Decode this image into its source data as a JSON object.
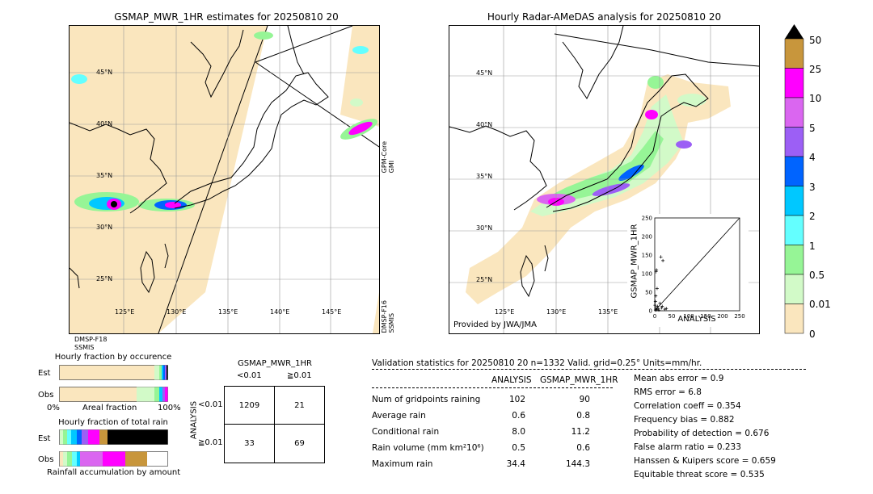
{
  "left_map": {
    "title": "GSMAP_MWR_1HR estimates for 20250810 20",
    "lat_labels": [
      "45°N",
      "40°N",
      "35°N",
      "30°N",
      "25°N"
    ],
    "lon_labels": [
      "125°E",
      "130°E",
      "135°E",
      "140°E",
      "145°E"
    ],
    "right_label_top": "GPM-Core\nGMI",
    "right_label_bottom": "DMSP-F16\nSSMIS",
    "bottom_label": "DMSP-F18\nSSMIS"
  },
  "right_map": {
    "title": "Hourly Radar-AMeDAS analysis for 20250810 20",
    "lat_labels": [
      "45°N",
      "40°N",
      "35°N",
      "30°N",
      "25°N"
    ],
    "lon_labels": [
      "125°E",
      "130°E",
      "135°E"
    ],
    "provider": "Provided by JWA/JMA"
  },
  "scatter": {
    "ylabel": "GSMAP_MWR_1HR",
    "xlabel": "ANALYSIS",
    "ticks": [
      "0",
      "50",
      "100",
      "150",
      "200",
      "250"
    ]
  },
  "colorbar": {
    "labels": [
      "50",
      "25",
      "10",
      "5",
      "4",
      "3",
      "2",
      "1",
      "0.5",
      "0.01",
      "0"
    ],
    "colors": [
      "#c8963c",
      "#ff00ff",
      "#da66f0",
      "#9c5ff5",
      "#0064ff",
      "#00c8ff",
      "#64ffff",
      "#96f596",
      "#d2fac8",
      "#fae6be"
    ]
  },
  "fraction_occurrence": {
    "title": "Hourly fraction by occurence",
    "row_labels": [
      "Est",
      "Obs"
    ],
    "axis_left": "0%",
    "axis_mid": "Areal fraction",
    "axis_right": "100%"
  },
  "fraction_total": {
    "title": "Hourly fraction of total rain",
    "row_labels": [
      "Est",
      "Obs"
    ],
    "footer": "Rainfall accumulation by amount"
  },
  "contingency": {
    "title": "GSMAP_MWR_1HR",
    "col_labels": [
      "<0.01",
      "≧0.01"
    ],
    "row_labels": [
      "<0.01",
      "≧0.01"
    ],
    "side_label": "ANALYSIS",
    "cells": [
      "1209",
      "21",
      "33",
      "69"
    ]
  },
  "validation": {
    "header": "Validation statistics for 20250810 20  n=1332 Valid. grid=0.25° Units=mm/hr.",
    "col1": "ANALYSIS",
    "col2": "GSMAP_MWR_1HR",
    "rows": [
      {
        "label": "Num of gridpoints raining",
        "a": "102",
        "b": "90"
      },
      {
        "label": "Average rain",
        "a": "0.6",
        "b": "0.8"
      },
      {
        "label": "Conditional rain",
        "a": "8.0",
        "b": "11.2"
      },
      {
        "label": "Rain volume (mm km²10⁶)",
        "a": "0.5",
        "b": "0.6"
      },
      {
        "label": "Maximum rain",
        "a": "34.4",
        "b": "144.3"
      }
    ],
    "scores": [
      "Mean abs error =    0.9",
      "RMS error =    6.8",
      "Correlation coeff =  0.354",
      "Frequency bias =  0.882",
      "Probability of detection =  0.676",
      "False alarm ratio =  0.233",
      "Hanssen & Kuipers score =  0.659",
      "Equitable threat score =  0.535"
    ]
  },
  "chart_data": {
    "type": "scatter",
    "title": "",
    "xlabel": "ANALYSIS",
    "ylabel": "GSMAP_MWR_1HR",
    "xlim": [
      0,
      250
    ],
    "ylim": [
      0,
      250
    ],
    "points": [
      {
        "x": 2,
        "y": 2
      },
      {
        "x": 4,
        "y": 8
      },
      {
        "x": 6,
        "y": 3
      },
      {
        "x": 8,
        "y": 12
      },
      {
        "x": 10,
        "y": 5
      },
      {
        "x": 3,
        "y": 40
      },
      {
        "x": 5,
        "y": 110
      },
      {
        "x": 4,
        "y": 105
      },
      {
        "x": 18,
        "y": 145
      },
      {
        "x": 24,
        "y": 135
      },
      {
        "x": 2,
        "y": 25
      },
      {
        "x": 12,
        "y": 2
      },
      {
        "x": 20,
        "y": 8
      },
      {
        "x": 30,
        "y": 4
      },
      {
        "x": 15,
        "y": 20
      },
      {
        "x": 7,
        "y": 60
      },
      {
        "x": 1,
        "y": 15
      },
      {
        "x": 22,
        "y": 12
      },
      {
        "x": 34,
        "y": 6
      }
    ]
  }
}
